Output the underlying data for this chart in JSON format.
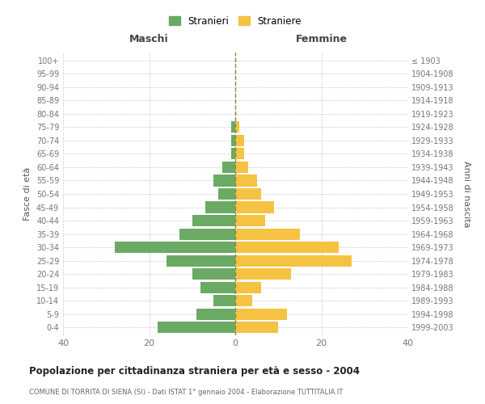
{
  "age_groups": [
    "0-4",
    "5-9",
    "10-14",
    "15-19",
    "20-24",
    "25-29",
    "30-34",
    "35-39",
    "40-44",
    "45-49",
    "50-54",
    "55-59",
    "60-64",
    "65-69",
    "70-74",
    "75-79",
    "80-84",
    "85-89",
    "90-94",
    "95-99",
    "100+"
  ],
  "birth_years": [
    "1999-2003",
    "1994-1998",
    "1989-1993",
    "1984-1988",
    "1979-1983",
    "1974-1978",
    "1969-1973",
    "1964-1968",
    "1959-1963",
    "1954-1958",
    "1949-1953",
    "1944-1948",
    "1939-1943",
    "1934-1938",
    "1929-1933",
    "1924-1928",
    "1919-1923",
    "1914-1918",
    "1909-1913",
    "1904-1908",
    "≤ 1903"
  ],
  "males": [
    18,
    9,
    5,
    8,
    10,
    16,
    28,
    13,
    10,
    7,
    4,
    5,
    3,
    1,
    1,
    1,
    0,
    0,
    0,
    0,
    0
  ],
  "females": [
    10,
    12,
    4,
    6,
    13,
    27,
    24,
    15,
    7,
    9,
    6,
    5,
    3,
    2,
    2,
    1,
    0,
    0,
    0,
    0,
    0
  ],
  "male_color": "#6aaa64",
  "female_color": "#f5c242",
  "title": "Popolazione per cittadinanza straniera per età e sesso - 2004",
  "subtitle": "COMUNE DI TORRITA DI SIENA (SI) - Dati ISTAT 1° gennaio 2004 - Elaborazione TUTTITALIA.IT",
  "xlabel_left": "Maschi",
  "xlabel_right": "Femmine",
  "ylabel_left": "Fasce di età",
  "ylabel_right": "Anni di nascita",
  "legend_stranieri": "Stranieri",
  "legend_straniere": "Straniere",
  "xlim": 40,
  "background_color": "#ffffff",
  "grid_color": "#cccccc",
  "bar_height": 0.85
}
